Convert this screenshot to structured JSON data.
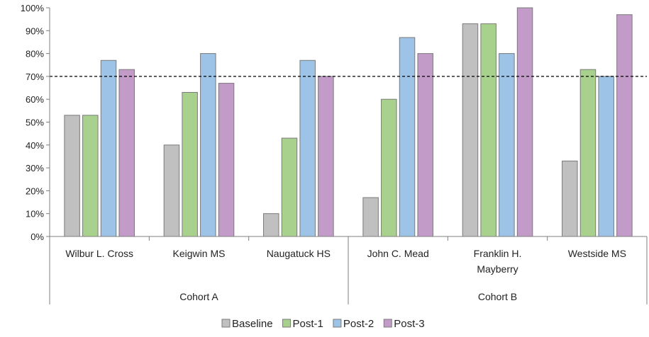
{
  "chart_data": {
    "type": "bar",
    "y_ticks": [
      "0%",
      "10%",
      "20%",
      "30%",
      "40%",
      "50%",
      "60%",
      "70%",
      "80%",
      "90%",
      "100%"
    ],
    "ylim": [
      0,
      100
    ],
    "reference_line": 70,
    "groups": [
      {
        "label": "Cohort A",
        "categories": [
          "Wilbur L. Cross",
          "Keigwin MS",
          "Naugatuck HS"
        ]
      },
      {
        "label": "Cohort B",
        "categories": [
          [
            "John C. Mead"
          ],
          [
            "Franklin H.",
            "Mayberry"
          ],
          [
            "Westside MS"
          ]
        ]
      }
    ],
    "categories": [
      "Wilbur L. Cross",
      "Keigwin MS",
      "Naugatuck HS",
      "John C. Mead",
      "Franklin H. Mayberry",
      "Westside MS"
    ],
    "series": [
      {
        "name": "Baseline",
        "color": "#c0c0c0",
        "values": [
          53,
          40,
          10,
          17,
          93,
          33
        ]
      },
      {
        "name": "Post-1",
        "color": "#a9d18e",
        "values": [
          53,
          63,
          43,
          60,
          93,
          73
        ]
      },
      {
        "name": "Post-2",
        "color": "#9dc3e6",
        "values": [
          77,
          80,
          77,
          87,
          80,
          70
        ]
      },
      {
        "name": "Post-3",
        "color": "#c39bc8",
        "values": [
          73,
          67,
          70,
          80,
          100,
          97
        ]
      }
    ],
    "legend_position": "bottom"
  }
}
